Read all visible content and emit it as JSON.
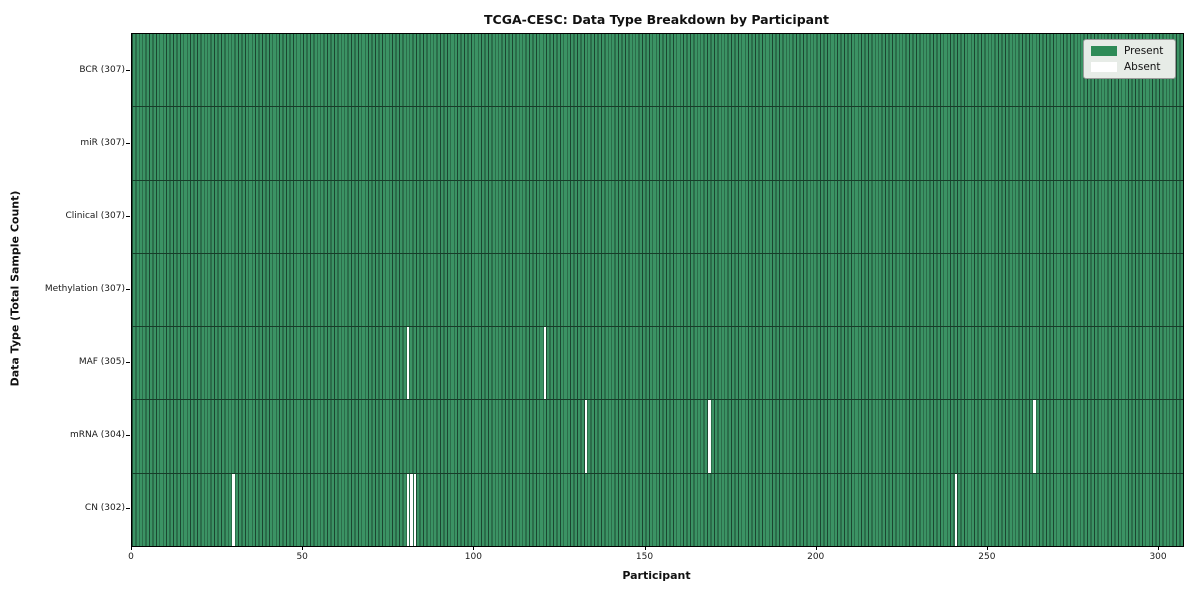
{
  "title": "TCGA-CESC: Data Type Breakdown by Participant",
  "axes": {
    "x_label": "Participant",
    "y_label": "Data Type (Total Sample Count)"
  },
  "legend_items": [
    {
      "label": "Present",
      "color": "#2e8b57"
    },
    {
      "label": "Absent",
      "color": "#ffffff"
    }
  ],
  "chart_data": {
    "type": "heatmap",
    "title": "TCGA-CESC: Data Type Breakdown by Participant",
    "xlabel": "Participant",
    "ylabel": "Data Type (Total Sample Count)",
    "n_participants": 307,
    "x_range": [
      0,
      307
    ],
    "x_ticks": [
      0,
      50,
      100,
      150,
      200,
      250,
      300
    ],
    "legend": [
      "Present",
      "Absent"
    ],
    "colors": {
      "present": "#3b9364",
      "present_legend": "#2e8b57",
      "absent": "#ffffff",
      "cell_edge": "#1b4731",
      "row_divider": "#173d29"
    },
    "rows": [
      {
        "label": "BCR (307)",
        "name": "BCR",
        "total": 307,
        "absent_participants": []
      },
      {
        "label": "miR (307)",
        "name": "miR",
        "total": 307,
        "absent_participants": []
      },
      {
        "label": "Clinical (307)",
        "name": "Clinical",
        "total": 307,
        "absent_participants": []
      },
      {
        "label": "Methylation (307)",
        "name": "Methylation",
        "total": 307,
        "absent_participants": []
      },
      {
        "label": "MAF (305)",
        "name": "MAF",
        "total": 305,
        "absent_participants": [
          80,
          120
        ]
      },
      {
        "label": "mRNA (304)",
        "name": "mRNA",
        "total": 304,
        "absent_participants": [
          132,
          168,
          263
        ]
      },
      {
        "label": "CN (302)",
        "name": "CN",
        "total": 302,
        "absent_participants": [
          29,
          80,
          81,
          82,
          240
        ]
      }
    ]
  }
}
